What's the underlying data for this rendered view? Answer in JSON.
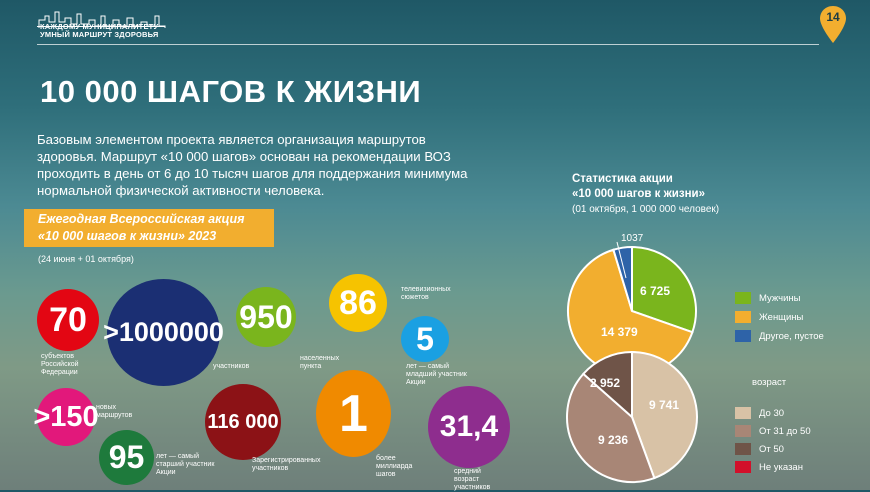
{
  "header": {
    "logo_line1": "КАЖДОМУ МУНИЦИПАЛИТЕТУ",
    "logo_line2": "УМНЫЙ МАРШРУТ ЗДОРОВЬЯ",
    "page_number": "14"
  },
  "title": "10 000 ШАГОВ К ЖИЗНИ",
  "intro": "Базовым элементом проекта является организация маршрутов здоровья. Маршрут «10 000 шагов» основан на рекомендации ВОЗ проходить в день от 6 до 10 тысяч шагов для поддержания минимума нормальной физической активности человека.",
  "banner": {
    "line1": "Ежегодная Всероссийская акция",
    "line2": "«10 000 шагов к жизни» 2023",
    "dates": "(24 июня + 01 октября)"
  },
  "stats": [
    {
      "value": "70",
      "caption": "субъектов Российской Федерации",
      "color": "#e30613"
    },
    {
      "value": ">1000000",
      "caption": "участников",
      "color": "#1b2f73"
    },
    {
      "value": "950",
      "caption": "населенных пункта",
      "color": "#7ab51d"
    },
    {
      "value": "86",
      "caption": "телевизионных сюжетов",
      "color": "#f6c300"
    },
    {
      "value": "5",
      "caption": "лет — самый младший участник Акции",
      "color": "#1aa0e2"
    },
    {
      "value": ">150",
      "caption": "новых маршрутов",
      "color": "#e2187b"
    },
    {
      "value": "95",
      "caption": "лет — самый старший участник Акции",
      "color": "#1e7a3c"
    },
    {
      "value": "116 000",
      "caption": "Зарегистрированных участников",
      "color": "#8c1216"
    },
    {
      "value": "1",
      "caption": "более миллиарда шагов",
      "color": "#f08a00"
    },
    {
      "value": "31,4",
      "caption": "средний возраст участников",
      "color": "#8e2d8e"
    }
  ],
  "statistics": {
    "title_line1": "Статистика акции",
    "title_line2": "«10 000 шагов к жизни»",
    "subtitle": "(01 октября, 1 000 000 человек)"
  },
  "chart_data": [
    {
      "type": "pie",
      "title": "",
      "slices": [
        {
          "label": "Мужчины",
          "value": 6725,
          "display": "6 725",
          "color": "#7ab51d"
        },
        {
          "label": "Женщины",
          "value": 14379,
          "display": "14 379",
          "color": "#f2ae2f"
        },
        {
          "label": "Другое, пустое",
          "value": 1037,
          "display": "1037",
          "color": "#2e63a8"
        }
      ],
      "legend_position": "right"
    },
    {
      "type": "pie",
      "title": "возраст",
      "slices": [
        {
          "label": "До 30",
          "value": 9741,
          "display": "9 741",
          "color": "#d8c2a6"
        },
        {
          "label": "От 31 до 50",
          "value": 9236,
          "display": "9 236",
          "color": "#a88676"
        },
        {
          "label": "От 50",
          "value": 2952,
          "display": "2 952",
          "color": "#6f5448"
        },
        {
          "label": "Не указан",
          "value": 0,
          "display": "",
          "color": "#d2102a"
        }
      ],
      "legend_position": "right"
    }
  ]
}
